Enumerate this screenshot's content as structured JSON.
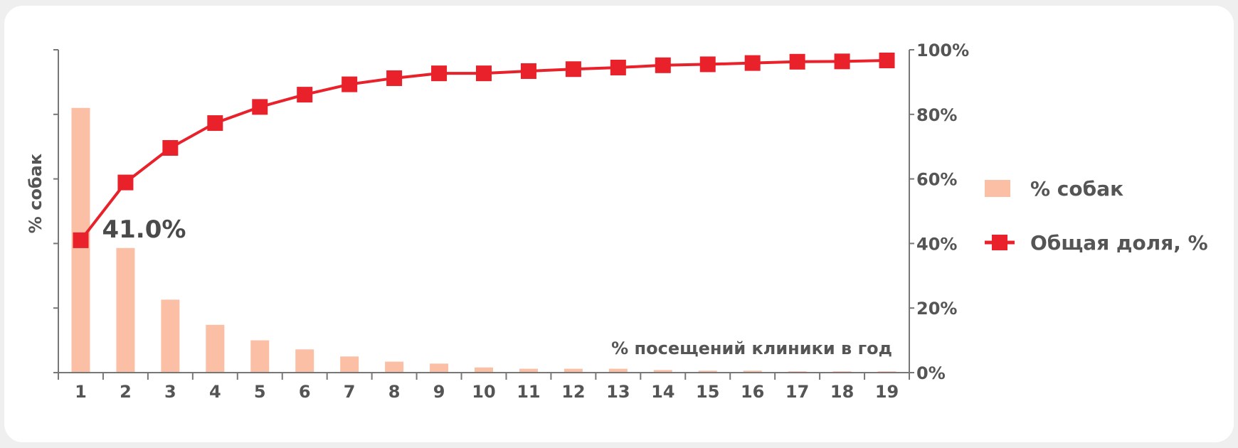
{
  "colors": {
    "bar": "#fbbfa6",
    "line": "#e8212a",
    "axis": "#777777",
    "text": "#555555"
  },
  "chart_data": {
    "type": "bar",
    "xlabel": "% посещений клиники в год",
    "ylabel": "% собак",
    "categories": [
      "1",
      "2",
      "3",
      "4",
      "5",
      "6",
      "7",
      "8",
      "9",
      "10",
      "11",
      "12",
      "13",
      "14",
      "15",
      "16",
      "17",
      "18",
      "19"
    ],
    "series": [
      {
        "name": "% собак",
        "type": "bar",
        "axis": "left",
        "values": [
          41.0,
          19.3,
          11.3,
          7.4,
          5.0,
          3.6,
          2.5,
          1.7,
          1.4,
          0.8,
          0.6,
          0.6,
          0.6,
          0.4,
          0.3,
          0.3,
          0.2,
          0.2,
          0.2
        ]
      },
      {
        "name": "Общая доля, %",
        "type": "line",
        "axis": "right",
        "marker": "square",
        "values": [
          41.0,
          58.9,
          69.6,
          77.3,
          82.3,
          86.1,
          89.3,
          91.2,
          92.7,
          92.7,
          93.4,
          94.0,
          94.5,
          95.2,
          95.5,
          95.9,
          96.3,
          96.4,
          96.7
        ]
      }
    ],
    "ylim_left": [
      0,
      50
    ],
    "ylim_right": [
      0,
      100
    ],
    "right_ticks": [
      "0%",
      "20%",
      "40%",
      "60%",
      "80%",
      "100%"
    ],
    "annotation": "41.0%",
    "legend_position": "right",
    "grid": false
  }
}
